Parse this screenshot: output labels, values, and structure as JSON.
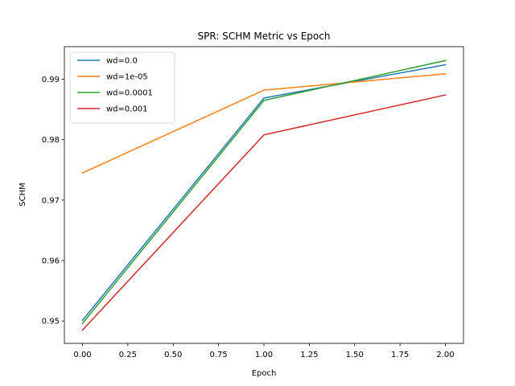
{
  "chart_data": {
    "type": "line",
    "title": "SPR: SCHM Metric vs Epoch",
    "xlabel": "Epoch",
    "ylabel": "SCHM",
    "x": [
      0,
      1,
      2
    ],
    "xlim": [
      -0.1,
      2.1
    ],
    "ylim": [
      0.9463,
      0.9954
    ],
    "xticks": [
      "0.00",
      "0.25",
      "0.50",
      "0.75",
      "1.00",
      "1.25",
      "1.50",
      "1.75",
      "2.00"
    ],
    "yticks": [
      "0.95",
      "0.96",
      "0.97",
      "0.98",
      "0.99"
    ],
    "grid": false,
    "legend_position": "upper-left",
    "series": [
      {
        "name": "wd=0.0",
        "color": "#1f77b4",
        "values": [
          0.9501,
          0.9869,
          0.9924
        ]
      },
      {
        "name": "wd=1e-05",
        "color": "#ff7f0e",
        "values": [
          0.9745,
          0.9882,
          0.9909
        ]
      },
      {
        "name": "wd=0.0001",
        "color": "#2ca02c",
        "values": [
          0.9496,
          0.9865,
          0.9931
        ]
      },
      {
        "name": "wd=0.001",
        "color": "#d62728",
        "values": [
          0.9485,
          0.9808,
          0.9874
        ]
      }
    ]
  }
}
